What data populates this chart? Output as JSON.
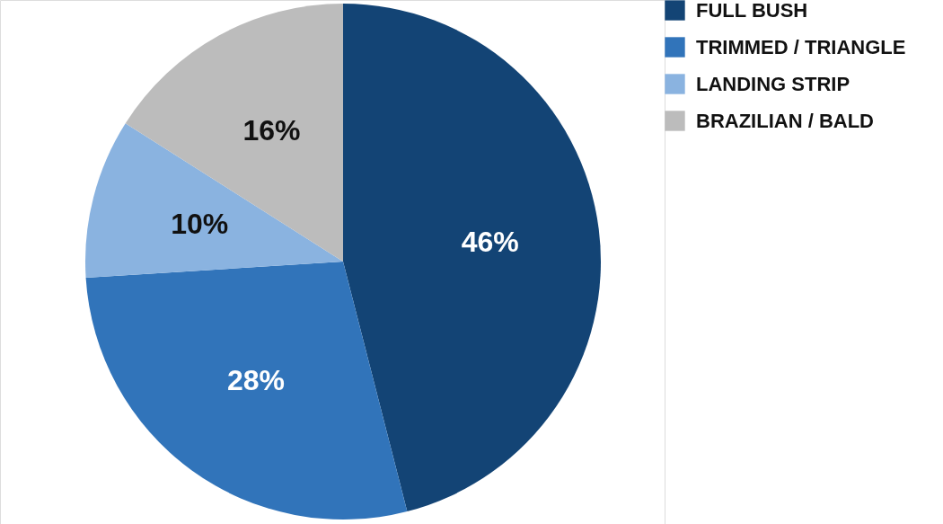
{
  "chart_data": {
    "type": "pie",
    "categories": [
      "FULL BUSH",
      "TRIMMED / TRIANGLE",
      "LANDING STRIP",
      "BRAZILIAN / BALD"
    ],
    "values": [
      46,
      28,
      10,
      16
    ],
    "colors": [
      "#134475",
      "#3174ba",
      "#8ab3e0",
      "#bcbcbc"
    ],
    "value_labels": [
      "46%",
      "28%",
      "10%",
      "16%"
    ],
    "legend": "right"
  }
}
